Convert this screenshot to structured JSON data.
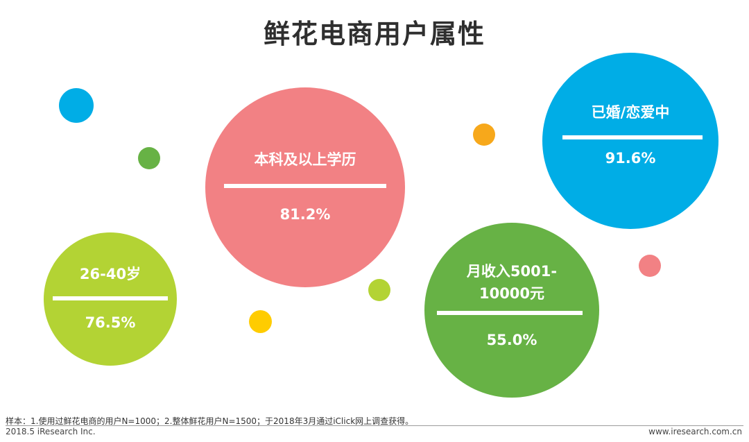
{
  "title": "鲜花电商用户属性",
  "chart_data": {
    "type": "bubble",
    "items": [
      {
        "label": "本科及以上学历",
        "value_text": "81.2%",
        "value": 81.2,
        "color": "#f28184"
      },
      {
        "label": "已婚/恋爱中",
        "value_text": "91.6%",
        "value": 91.6,
        "color": "#00ade6"
      },
      {
        "label": "26-40岁",
        "value_text": "76.5%",
        "value": 76.5,
        "color": "#b3d334"
      },
      {
        "label": "月收入5001-\n10000元",
        "value_text": "55.0%",
        "value": 55.0,
        "color": "#67b245"
      }
    ]
  },
  "decor_colors": {
    "blue": "#00ade6",
    "green": "#67b245",
    "orange": "#f7a81b",
    "yellow": "#ffcc00",
    "lime": "#b3d334",
    "pink": "#f28184"
  },
  "footer": {
    "note": "样本：1.使用过鲜花电商的用户N=1000；2.整体鲜花用户N=1500；于2018年3月通过iClick网上调查获得。",
    "copyright": "2018.5 iResearch Inc.",
    "website": "www.iresearch.com.cn"
  }
}
